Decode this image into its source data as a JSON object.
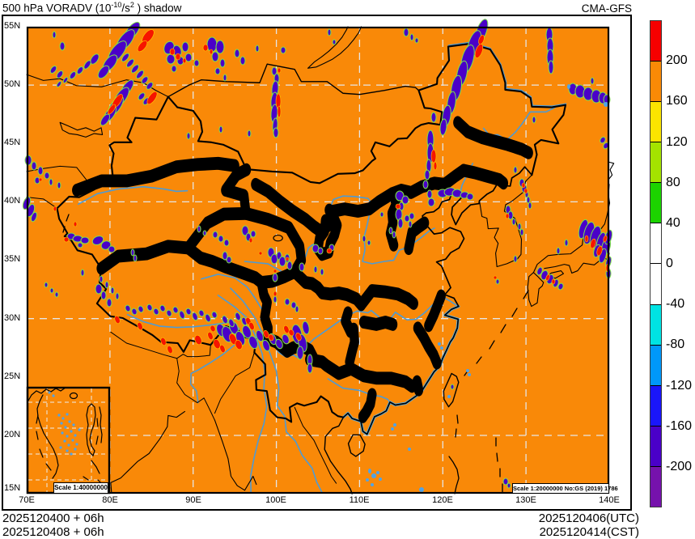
{
  "header": {
    "title_prefix": "500 hPa VORADV (10",
    "title_sup_a": "-10",
    "title_mid": "/s",
    "title_sup_b": "2",
    "title_suffix": " ) shadow",
    "model": "CMA-GFS"
  },
  "axes": {
    "lat": [
      "55N",
      "50N",
      "45N",
      "40N",
      "35N",
      "30N",
      "25N",
      "20N",
      "15N"
    ],
    "lon": [
      "70E",
      "80E",
      "90E",
      "100E",
      "110E",
      "120E",
      "130E",
      "140E"
    ]
  },
  "colorbar": {
    "tick_labels": [
      "200",
      "160",
      "120",
      "80",
      "40",
      "0",
      "-40",
      "-80",
      "-120",
      "-160",
      "-200"
    ],
    "segment_colors": [
      "#F60000",
      "#FA8A06",
      "#FBE400",
      "#A4E300",
      "#1CD300",
      "#FFFFFF",
      "#FFFFFF",
      "#00E3E3",
      "#0098FA",
      "#1A16FA",
      "#4A00C8",
      "#7612AC"
    ]
  },
  "map": {
    "background": "#F98908",
    "land_line": "#000000",
    "river": "#4D9BD5",
    "grid": "#E6E6E6",
    "anomaly_positive": "#F61400",
    "anomaly_negative": "#4A00C8",
    "negative_rim": "#7FE34A",
    "positive_rim": "#FFCC00",
    "island_dot": "#4FA3E8",
    "inset_scale_label": "Scale 1:40000000",
    "main_scale_label": "Scale 1:20000000 No:GS (2019) 1786"
  },
  "footer": {
    "init_line1": "2025120400 + 06h",
    "init_line2": "2025120408 + 06h",
    "valid_utc": "2025120406(UTC)",
    "valid_cst": "2025120414(CST)"
  }
}
